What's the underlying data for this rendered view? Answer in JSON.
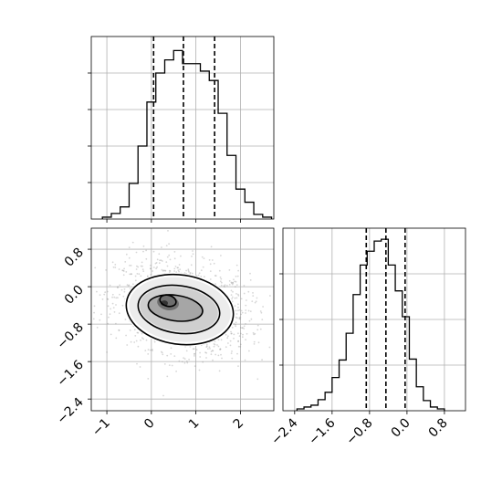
{
  "chart_data": [
    {
      "type": "histogram",
      "panel": "x-marginal",
      "bin_edges": [
        -1.1,
        -0.9,
        -0.7,
        -0.5,
        -0.3,
        -0.1,
        0.1,
        0.3,
        0.5,
        0.7,
        0.9,
        1.1,
        1.3,
        1.5,
        1.7,
        1.9,
        2.1,
        2.3,
        2.5,
        2.7
      ],
      "counts": [
        0.2,
        0.6,
        1.3,
        3.8,
        7.8,
        12.5,
        15.6,
        17.0,
        18.0,
        16.6,
        16.6,
        15.8,
        14.8,
        11.3,
        6.8,
        3.2,
        1.8,
        0.5,
        0.2
      ],
      "ylim": [
        0,
        19.5
      ],
      "xlim": [
        -1.35,
        2.75
      ],
      "quantile_lines": [
        0.05,
        0.72,
        1.42
      ],
      "grid": true
    },
    {
      "type": "histogram2d",
      "panel": "joint",
      "x_tick_labels": [
        "−1",
        "0",
        "1",
        "2"
      ],
      "x_ticks": [
        -1,
        0,
        1,
        2
      ],
      "y_tick_labels": [
        "−2.4",
        "−1.6",
        "−0.8",
        "0.0",
        "0.8"
      ],
      "y_ticks": [
        -2.4,
        -1.6,
        -0.8,
        0.0,
        0.8
      ],
      "xlim": [
        -1.35,
        2.75
      ],
      "ylim": [
        -2.65,
        1.25
      ],
      "center": [
        0.7,
        -0.45
      ],
      "grid": true
    },
    {
      "type": "histogram",
      "panel": "y-marginal",
      "bin_edges": [
        -2.35,
        -2.2,
        -2.05,
        -1.9,
        -1.75,
        -1.6,
        -1.45,
        -1.3,
        -1.15,
        -1.0,
        -0.85,
        -0.7,
        -0.55,
        -0.4,
        -0.25,
        -0.1,
        0.05,
        0.2,
        0.35,
        0.5,
        0.65,
        0.8
      ],
      "counts": [
        0.2,
        0.4,
        0.6,
        1.2,
        2.0,
        3.6,
        5.5,
        8.4,
        12.6,
        15.8,
        17.3,
        18.4,
        18.6,
        15.8,
        13.0,
        10.2,
        5.6,
        2.6,
        1.1,
        0.4,
        0.2
      ],
      "ylim": [
        0,
        19.8
      ],
      "xlim": [
        -2.65,
        1.25
      ],
      "quantile_lines": [
        -0.87,
        -0.45,
        -0.04
      ],
      "x_tick_labels": [
        "−2.4",
        "−1.6",
        "−0.8",
        "0.0",
        "0.8"
      ],
      "x_ticks": [
        -2.4,
        -1.6,
        -0.8,
        0.0,
        0.8
      ],
      "grid": true
    }
  ]
}
